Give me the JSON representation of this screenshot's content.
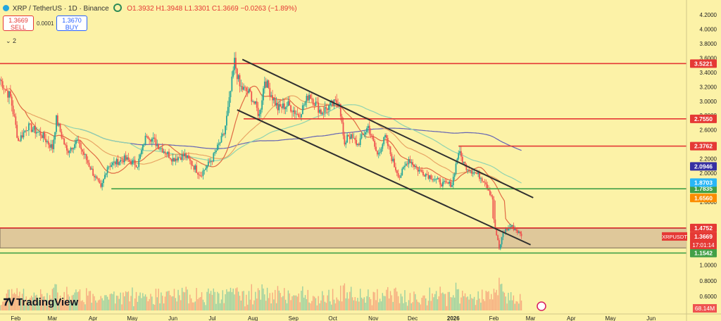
{
  "header": {
    "symbol_title": "XRP / TetherUS · 1D · Binance",
    "ohlc": "O1.3932 H1.3948 L1.3301 C1.3669 −0.0263 (−1.89%)"
  },
  "trade": {
    "sell_price": "1.3669",
    "sell_label": "SELL",
    "spread": "0.0001",
    "buy_price": "1.3670",
    "buy_label": "BUY"
  },
  "indicators_toggle": "⌄ 2",
  "logo_text": "TradingView",
  "colors": {
    "background": "#fcf2a7",
    "up": "#26a69a",
    "down": "#ef5350",
    "resistance": "#e53935",
    "support": "#43a047",
    "channel": "#2f2f2f",
    "ma200": "#6464b4",
    "ma100": "#8fd3b0",
    "ma50": "#e8a565",
    "ma20": "#e06a44",
    "zone_fill": "#d6ba96"
  },
  "chart_data": {
    "type": "candlestick",
    "title": "XRP / TetherUS · 1D · Binance",
    "symbol_label": "XRPUSDT",
    "last_price": "1.3669",
    "countdown": "17:01:14",
    "volume_label": "68.14M",
    "ylim": [
      0.4,
      4.3
    ],
    "y_ticks": [
      "4.2000",
      "4.0000",
      "3.8000",
      "3.6000",
      "3.4000",
      "3.2000",
      "3.0000",
      "2.8000",
      "2.6000",
      "2.4000",
      "2.2000",
      "2.0000",
      "1.8000",
      "1.6000",
      "1.0000",
      "0.8000",
      "0.6000"
    ],
    "x_ticks": [
      "Feb",
      "Mar",
      "Apr",
      "May",
      "Jun",
      "Jul",
      "Aug",
      "Sep",
      "Oct",
      "Nov",
      "Dec",
      "2026",
      "Feb",
      "Mar",
      "Apr",
      "May",
      "Jun"
    ],
    "horizontal_levels": [
      {
        "value": 3.5221,
        "label": "3.5221",
        "kind": "resistance"
      },
      {
        "value": 2.755,
        "label": "2.7550",
        "kind": "resistance"
      },
      {
        "value": 2.3762,
        "label": "2.3762",
        "kind": "resistance"
      },
      {
        "value": 1.7835,
        "label": "1.7835",
        "kind": "support"
      },
      {
        "value": 1.4752,
        "label": "1.4752",
        "kind": "resistance"
      },
      {
        "value": 1.1542,
        "label": "1.1542",
        "kind": "support"
      }
    ],
    "moving_average_tags": [
      {
        "value": 2.0946,
        "label": "2.0946",
        "color": "#3730a3"
      },
      {
        "value": 1.8703,
        "label": "1.8703",
        "color": "#29b6f6"
      },
      {
        "value": 1.656,
        "label": "1.6560",
        "color": "#fb8c00"
      }
    ],
    "demand_zone": [
      1.22,
      1.47
    ],
    "channel": {
      "upper": [
        [
          "Jul 24",
          3.58
        ],
        [
          "Mar 3",
          1.66
        ]
      ],
      "lower": [
        [
          "Jul 20",
          2.88
        ],
        [
          "Mar 1",
          1.26
        ]
      ]
    },
    "price_path": [
      [
        "Jan 20",
        3.3
      ],
      [
        "Jan 28",
        3.05
      ],
      [
        "Feb 3",
        2.45
      ],
      [
        "Feb 10",
        2.65
      ],
      [
        "Feb 20",
        2.55
      ],
      [
        "Mar 1",
        2.35
      ],
      [
        "Mar 4",
        2.75
      ],
      [
        "Mar 12",
        2.3
      ],
      [
        "Mar 20",
        2.45
      ],
      [
        "Mar 28",
        2.15
      ],
      [
        "Apr 7",
        1.78
      ],
      [
        "Apr 12",
        2.1
      ],
      [
        "Apr 25",
        2.2
      ],
      [
        "May 5",
        2.12
      ],
      [
        "May 12",
        2.55
      ],
      [
        "May 20",
        2.4
      ],
      [
        "Jun 1",
        2.2
      ],
      [
        "Jun 10",
        2.25
      ],
      [
        "Jun 22",
        1.98
      ],
      [
        "Jul 1",
        2.2
      ],
      [
        "Jul 10",
        2.55
      ],
      [
        "Jul 14",
        3.0
      ],
      [
        "Jul 18",
        3.55
      ],
      [
        "Jul 22",
        3.2
      ],
      [
        "Jul 30",
        3.1
      ],
      [
        "Aug 6",
        2.8
      ],
      [
        "Aug 10",
        3.3
      ],
      [
        "Aug 20",
        2.9
      ],
      [
        "Aug 28",
        2.95
      ],
      [
        "Sep 5",
        2.8
      ],
      [
        "Sep 13",
        3.1
      ],
      [
        "Sep 22",
        2.85
      ],
      [
        "Sep 30",
        2.95
      ],
      [
        "Oct 6",
        3.0
      ],
      [
        "Oct 10",
        2.35
      ],
      [
        "Oct 12",
        2.55
      ],
      [
        "Oct 20",
        2.4
      ],
      [
        "Oct 28",
        2.65
      ],
      [
        "Nov 4",
        2.25
      ],
      [
        "Nov 10",
        2.5
      ],
      [
        "Nov 17",
        2.1
      ],
      [
        "Nov 21",
        1.95
      ],
      [
        "Nov 28",
        2.2
      ],
      [
        "Dec 5",
        2.05
      ],
      [
        "Dec 15",
        1.95
      ],
      [
        "Dec 24",
        1.85
      ],
      [
        "Dec 31",
        1.85
      ],
      [
        "Jan 5",
        2.3
      ],
      [
        "Jan 10",
        2.1
      ],
      [
        "Jan 18",
        2.0
      ],
      [
        "Jan 25",
        1.9
      ],
      [
        "Jan 31",
        1.65
      ],
      [
        "Feb 5",
        1.2
      ],
      [
        "Feb 8",
        1.42
      ],
      [
        "Feb 14",
        1.5
      ],
      [
        "Feb 18",
        1.45
      ],
      [
        "Feb 22",
        1.37
      ]
    ]
  }
}
